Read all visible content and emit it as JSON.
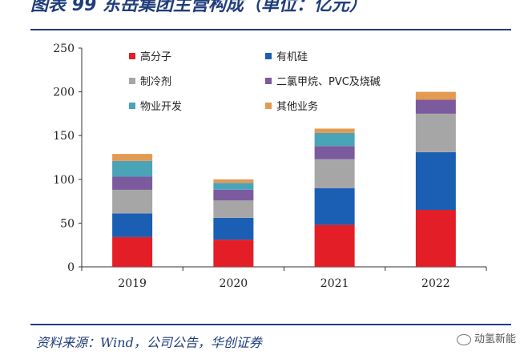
{
  "title": "图表 99 东岳集团主营构成（单位：亿元）",
  "source": "资料来源：Wind，公司公告，华创证券",
  "watermark": "动氢新能",
  "chart_data": {
    "type": "bar",
    "stacked": true,
    "categories": [
      "2019",
      "2020",
      "2021",
      "2022"
    ],
    "series": [
      {
        "name": "高分子",
        "color": "#e31e26",
        "values": [
          34,
          31,
          48,
          65
        ]
      },
      {
        "name": "有机硅",
        "color": "#1a5fb4",
        "values": [
          27,
          25,
          42,
          66
        ]
      },
      {
        "name": "制冷剂",
        "color": "#a6a6a6",
        "values": [
          27,
          20,
          33,
          44
        ]
      },
      {
        "name": "二氯甲烷、PVC及烧碱",
        "color": "#7b5a9e",
        "values": [
          15,
          12,
          15,
          16
        ]
      },
      {
        "name": "物业开发",
        "color": "#4ba3b8",
        "values": [
          18,
          8,
          15,
          0
        ]
      },
      {
        "name": "其他业务",
        "color": "#e39a52",
        "values": [
          8,
          4,
          5,
          9
        ]
      }
    ],
    "ylim": [
      0,
      250
    ],
    "yticks": [
      0,
      50,
      100,
      150,
      200,
      250
    ],
    "legend_position": "top-left, 3 rows × 2 columns"
  }
}
